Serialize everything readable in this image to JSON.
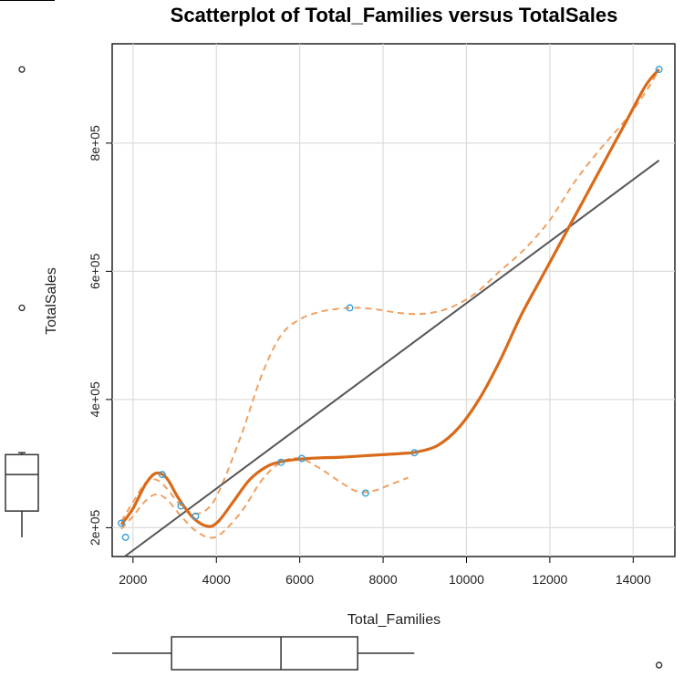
{
  "chart_data": {
    "type": "scatter",
    "title": "Scatterplot of Total_Families versus TotalSales",
    "xlabel": "Total_Families",
    "ylabel": "TotalSales",
    "xlim": [
      1500,
      15000
    ],
    "ylim": [
      155000,
      955000
    ],
    "xticks": [
      2000,
      4000,
      6000,
      8000,
      10000,
      12000,
      14000
    ],
    "xtick_labels": [
      "2000",
      "4000",
      "6000",
      "8000",
      "10000",
      "12000",
      "14000"
    ],
    "yticks": [
      200000,
      400000,
      600000,
      800000
    ],
    "ytick_labels": [
      "2e+05",
      "4e+05",
      "6e+05",
      "8e+05"
    ],
    "grid": true,
    "points": [
      {
        "x": 1720,
        "y": 207000
      },
      {
        "x": 1820,
        "y": 185000
      },
      {
        "x": 2700,
        "y": 283000
      },
      {
        "x": 3150,
        "y": 234000
      },
      {
        "x": 3500,
        "y": 218000
      },
      {
        "x": 5550,
        "y": 302000
      },
      {
        "x": 6050,
        "y": 308000
      },
      {
        "x": 7200,
        "y": 543000
      },
      {
        "x": 7580,
        "y": 254000
      },
      {
        "x": 8750,
        "y": 317000
      },
      {
        "x": 14620,
        "y": 915000
      }
    ],
    "regression_line": {
      "x": [
        1800,
        14620
      ],
      "y": [
        155000,
        773000
      ],
      "color": "#555555"
    },
    "smooth_line": {
      "color": "#d96a1a",
      "x": [
        1720,
        2000,
        2300,
        2550,
        2800,
        3100,
        3450,
        3800,
        4050,
        4400,
        4800,
        5200,
        5550,
        6000,
        6500,
        7000,
        7500,
        8000,
        8500,
        8800,
        9300,
        9800,
        10300,
        10800,
        11300,
        11800,
        12300,
        12800,
        13300,
        13800,
        14300,
        14620
      ],
      "y": [
        205000,
        230000,
        268000,
        285000,
        278000,
        245000,
        215000,
        202000,
        210000,
        240000,
        275000,
        295000,
        303000,
        307000,
        309000,
        310000,
        312000,
        314000,
        316000,
        318000,
        328000,
        355000,
        400000,
        460000,
        530000,
        590000,
        650000,
        710000,
        770000,
        830000,
        890000,
        915000
      ]
    },
    "spread_upper": {
      "color": "#f0a060",
      "x": [
        1720,
        2000,
        2300,
        2550,
        2800,
        3100,
        3450,
        3800,
        4100,
        4600,
        5100,
        5550,
        6000,
        6500,
        7000,
        7400,
        7900,
        8400,
        9000,
        9600,
        10200,
        10800,
        11400,
        12000,
        12600,
        13200,
        13800,
        14300,
        14620
      ],
      "y": [
        210000,
        240000,
        270000,
        275000,
        262000,
        238000,
        222000,
        230000,
        262000,
        345000,
        440000,
        500000,
        525000,
        537000,
        542000,
        543000,
        540000,
        535000,
        534000,
        543000,
        565000,
        600000,
        635000,
        680000,
        740000,
        790000,
        835000,
        880000,
        915000
      ]
    },
    "spread_lower": {
      "color": "#f0a060",
      "x": [
        1720,
        2000,
        2300,
        2550,
        2800,
        3100,
        3450,
        3800,
        4100,
        4600,
        5100,
        5550,
        6000,
        6500,
        7000,
        7400,
        7800,
        8200,
        8600
      ],
      "y": [
        198000,
        218000,
        242000,
        252000,
        245000,
        222000,
        198000,
        185000,
        190000,
        225000,
        275000,
        302000,
        308000,
        292000,
        270000,
        256000,
        258000,
        268000,
        278000
      ]
    },
    "y_boxplot": {
      "min": 185000,
      "q1": 226000,
      "median": 283000,
      "q3": 314000,
      "max": 317000,
      "outliers": [
        543000,
        915000
      ]
    },
    "x_boxplot": {
      "min": 1720,
      "q1": 2925,
      "median": 5550,
      "q3": 7390,
      "max": 8750,
      "outliers": [
        14620
      ]
    }
  }
}
